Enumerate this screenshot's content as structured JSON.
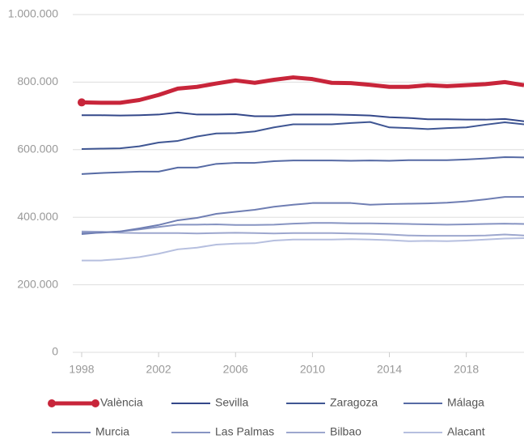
{
  "chart_data": {
    "type": "line",
    "x": [
      1998,
      1999,
      2000,
      2001,
      2002,
      2003,
      2004,
      2005,
      2006,
      2007,
      2008,
      2009,
      2010,
      2011,
      2012,
      2013,
      2014,
      2015,
      2016,
      2017,
      2018,
      2019,
      2020,
      2021
    ],
    "xlim": [
      1998,
      2021
    ],
    "xticks": [
      1998,
      2002,
      2006,
      2010,
      2014,
      2018
    ],
    "ylim": [
      0,
      1000000
    ],
    "yticks": [
      0,
      {
        "value": 200000,
        "label": "200.000"
      },
      {
        "value": 400000,
        "label": "400.000"
      },
      {
        "value": 600000,
        "label": "600.000"
      },
      {
        "value": 800000,
        "label": "800.000"
      },
      {
        "value": 1000000,
        "label": "1.000.000"
      }
    ],
    "grid": true,
    "legend": "bottom",
    "series": [
      {
        "name": "València",
        "color": "#c8253a",
        "values": [
          740000,
          739000,
          739000,
          747000,
          762000,
          781000,
          786000,
          796000,
          805000,
          798000,
          807000,
          814000,
          809000,
          798000,
          797000,
          792000,
          786000,
          786000,
          791000,
          788000,
          791000,
          794000,
          800000,
          791000
        ]
      },
      {
        "name": "Sevilla",
        "color": "#34488a",
        "values": [
          702000,
          702000,
          701000,
          702000,
          704000,
          710000,
          704000,
          704000,
          705000,
          699000,
          699000,
          704000,
          704000,
          704000,
          703000,
          701000,
          696000,
          694000,
          690000,
          690000,
          689000,
          689000,
          691000,
          684000
        ]
      },
      {
        "name": "Zaragoza",
        "color": "#3f5693",
        "values": [
          602000,
          603000,
          604000,
          610000,
          621000,
          626000,
          639000,
          648000,
          649000,
          654000,
          666000,
          675000,
          675000,
          675000,
          679000,
          682000,
          666000,
          664000,
          661000,
          664000,
          666000,
          674000,
          681000,
          675000
        ]
      },
      {
        "name": "Málaga",
        "color": "#566aa4",
        "values": [
          528000,
          531000,
          533000,
          535000,
          535000,
          547000,
          547000,
          558000,
          561000,
          561000,
          566000,
          568000,
          568000,
          568000,
          567000,
          568000,
          567000,
          569000,
          569000,
          569000,
          571000,
          574000,
          578000,
          577000
        ]
      },
      {
        "name": "Murcia",
        "color": "#6f7eb3",
        "values": [
          350000,
          355000,
          358000,
          367000,
          377000,
          391000,
          398000,
          410000,
          416000,
          422000,
          431000,
          437000,
          442000,
          442000,
          442000,
          437000,
          439000,
          440000,
          441000,
          443000,
          447000,
          453000,
          460000,
          460000
        ]
      },
      {
        "name": "Las Palmas",
        "color": "#8794c2",
        "values": [
          355000,
          354000,
          358000,
          364000,
          371000,
          378000,
          378000,
          379000,
          377000,
          377000,
          378000,
          381000,
          383000,
          383000,
          382000,
          382000,
          381000,
          380000,
          379000,
          378000,
          379000,
          380000,
          381000,
          380000
        ]
      },
      {
        "name": "Bilbao",
        "color": "#9da7ce",
        "values": [
          358000,
          357000,
          354000,
          353000,
          353000,
          353000,
          352000,
          353000,
          354000,
          353000,
          352000,
          353000,
          353000,
          353000,
          352000,
          351000,
          349000,
          346000,
          345000,
          345000,
          345000,
          346000,
          349000,
          346000
        ]
      },
      {
        "name": "Alacant",
        "color": "#b6bfdf",
        "values": [
          272000,
          272000,
          276000,
          282000,
          292000,
          305000,
          310000,
          319000,
          322000,
          323000,
          331000,
          334000,
          334000,
          334000,
          335000,
          334000,
          332000,
          329000,
          330000,
          329000,
          331000,
          334000,
          337000,
          338000
        ]
      }
    ]
  }
}
